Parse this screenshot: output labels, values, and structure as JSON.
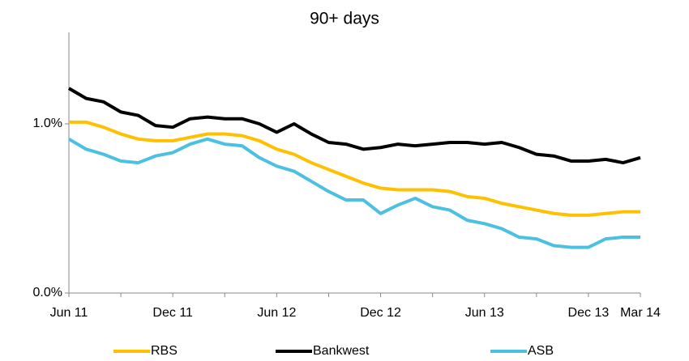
{
  "chart_data": {
    "type": "line",
    "title": "90+ days",
    "categories": [
      "Jun 11",
      null,
      null,
      null,
      null,
      null,
      "Dec 11",
      null,
      null,
      null,
      null,
      null,
      "Jun 12",
      null,
      null,
      null,
      null,
      null,
      "Dec 12",
      null,
      null,
      null,
      null,
      null,
      "Jun 13",
      null,
      null,
      null,
      null,
      null,
      "Dec 13",
      null,
      null,
      "Mar 14"
    ],
    "series": [
      {
        "name": "RBS",
        "color": "#ffc000",
        "values": [
          1.01,
          1.01,
          0.98,
          0.94,
          0.91,
          0.9,
          0.9,
          0.92,
          0.94,
          0.94,
          0.93,
          0.9,
          0.85,
          0.82,
          0.77,
          0.73,
          0.69,
          0.65,
          0.62,
          0.61,
          0.61,
          0.61,
          0.6,
          0.57,
          0.56,
          0.53,
          0.51,
          0.49,
          0.47,
          0.46,
          0.46,
          0.47,
          0.48,
          0.48
        ]
      },
      {
        "name": "Bankwest",
        "color": "#000000",
        "values": [
          1.21,
          1.15,
          1.13,
          1.07,
          1.05,
          0.99,
          0.98,
          1.03,
          1.04,
          1.03,
          1.03,
          1.0,
          0.95,
          1.0,
          0.94,
          0.89,
          0.88,
          0.85,
          0.86,
          0.88,
          0.87,
          0.88,
          0.89,
          0.89,
          0.88,
          0.89,
          0.86,
          0.82,
          0.81,
          0.78,
          0.78,
          0.79,
          0.77,
          0.8
        ]
      },
      {
        "name": "ASB",
        "color": "#4bc0e0",
        "values": [
          0.91,
          0.85,
          0.82,
          0.78,
          0.77,
          0.81,
          0.83,
          0.88,
          0.91,
          0.88,
          0.87,
          0.8,
          0.75,
          0.72,
          0.66,
          0.6,
          0.55,
          0.55,
          0.47,
          0.52,
          0.56,
          0.51,
          0.49,
          0.43,
          0.41,
          0.38,
          0.33,
          0.32,
          0.28,
          0.27,
          0.27,
          0.32,
          0.33,
          0.33
        ]
      }
    ],
    "ylim": [
      0,
      1.5
    ],
    "yticks": [
      {
        "value": 0,
        "label": "0.0%"
      },
      {
        "value": 1,
        "label": "1.0%"
      }
    ],
    "legend": "bottom"
  }
}
